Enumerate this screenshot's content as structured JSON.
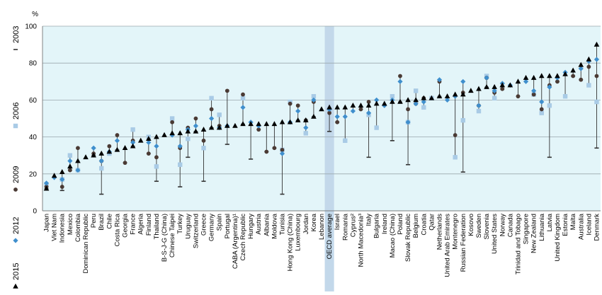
{
  "chart_data": {
    "type": "scatter",
    "y_unit": "%",
    "ylim": [
      0,
      100
    ],
    "yticks": [
      0,
      20,
      40,
      60,
      80,
      100
    ],
    "grid": true,
    "legend_placement": "left-vertical",
    "highlight_category": "OECD average",
    "colors": {
      "plot_bg": "#e3f5f9",
      "grid": "#9aa7ad",
      "range_line": "#333333",
      "s2003": "#333333",
      "s2006": "#a9cbe6",
      "s2009": "#4a3a34",
      "s2012": "#3f8fcd",
      "s2015": "#000000",
      "highlight_band": "#c3d8ea"
    },
    "series": [
      {
        "name": "2015",
        "marker": "triangle"
      },
      {
        "name": "2012",
        "marker": "diamond"
      },
      {
        "name": "2009",
        "marker": "circle"
      },
      {
        "name": "2006",
        "marker": "square"
      },
      {
        "name": "2003",
        "marker": "bar"
      }
    ],
    "categories": [
      "Japan",
      "Viet Nam",
      "Indonesia",
      "Mexico",
      "Colombia",
      "Dominican Republic",
      "Peru",
      "Brazil",
      "Chile",
      "Costa Rica",
      "Georgia",
      "France",
      "Algeria",
      "Finland",
      "Thailand",
      "B-S-J-G (China)",
      "Chinese Taipei",
      "Turkey",
      "Uruguay",
      "Switzerland",
      "Greece",
      "Germany",
      "Spain",
      "Portugal",
      "CABA (Argentina)",
      "Czech Republic",
      "Hungary",
      "Austria",
      "Albania",
      "Moldova",
      "Tunisia",
      "Hong Kong (China)",
      "Luxembourg",
      "Jordan",
      "Korea",
      "Lebanon",
      "OECD average",
      "Israel",
      "Romania",
      "Cyprus",
      "North Macedonia",
      "Italy",
      "Bulgaria",
      "Ireland",
      "Macao (China)",
      "Poland",
      "Slovak Republic",
      "Belgium",
      "Croatia",
      "Qatar",
      "Netherlands",
      "United Arab Emirates",
      "Montenegro",
      "Russian Federation",
      "Kosovo",
      "Sweden",
      "Slovenia",
      "United States",
      "Norway",
      "Canada",
      "Trinidad and Tobago",
      "Singapore",
      "New Zealand",
      "Lithuania",
      "Latvia",
      "United Kingdom",
      "Estonia",
      "Malta",
      "Australia",
      "Iceland",
      "Denmark"
    ],
    "category_labels": [
      "Japan",
      "Viet Nam",
      "Indonesia",
      "Mexico",
      "Colombia",
      "Dominican Republic",
      "Peru",
      "Brazil",
      "Chile",
      "Costa Rica",
      "Georgia",
      "France",
      "Algeria",
      "Finland",
      "Thailand",
      "B-S-J-G (China)",
      "Chinese Taipei",
      "Turkey",
      "Uruguay",
      "Switzerland",
      "Greece",
      "Germany",
      "Spain",
      "Portugal",
      "CABA (Argentina)¹",
      "Czech Republic",
      "Hungary",
      "Austria",
      "Albania",
      "Moldova",
      "Tunisia",
      "Hong Kong (China)",
      "Luxembourg",
      "Jordan",
      "Korea",
      "Lebanon",
      "OECD average",
      "Israel",
      "Romania",
      "Cyprus²",
      "North Macedonia³",
      "Italy",
      "Bulgaria",
      "Ireland",
      "Macao (China)",
      "Poland",
      "Slovak Republic",
      "Belgium",
      "Croatia",
      "Qatar",
      "Netherlands",
      "United Arab Emirates",
      "Montenegro",
      "Russian Federation",
      "Kosovo",
      "Sweden",
      "Slovenia",
      "United States",
      "Norway",
      "Canada",
      "Trinidad and Tobago",
      "Singapore",
      "New Zealand",
      "Lithuania",
      "Latvia",
      "United Kingdom",
      "Estonia",
      "Malta",
      "Australia",
      "Iceland",
      "Denmark"
    ],
    "values": {
      "2015": [
        12,
        19,
        21,
        24,
        27,
        29,
        30,
        31,
        32,
        33,
        34,
        35,
        38,
        39,
        40,
        41,
        42,
        42,
        43,
        43,
        44,
        45,
        45,
        46,
        46,
        47,
        47,
        47,
        47,
        47,
        48,
        48,
        49,
        49,
        51,
        55,
        56,
        56,
        56,
        57,
        57,
        57,
        58,
        58,
        59,
        59,
        60,
        60,
        61,
        61,
        62,
        62,
        63,
        63,
        65,
        66,
        67,
        67,
        68,
        68,
        70,
        72,
        72,
        73,
        73,
        73,
        74,
        76,
        79,
        82,
        90
      ],
      "2012": [
        15,
        18,
        17,
        27,
        22,
        null,
        34,
        27,
        32,
        38,
        null,
        37,
        null,
        37,
        35,
        null,
        41,
        35,
        44,
        46,
        null,
        50,
        45,
        46,
        null,
        56,
        48,
        46,
        null,
        null,
        31,
        48,
        54,
        45,
        60,
        null,
        55,
        51,
        51,
        54,
        null,
        53,
        60,
        57,
        60,
        70,
        48,
        58,
        59,
        null,
        71,
        60,
        62,
        70,
        null,
        57,
        72,
        65,
        69,
        68,
        null,
        70,
        65,
        59,
        67,
        72,
        75,
        null,
        77,
        81,
        82
      ],
      "2009": [
        13,
        null,
        13,
        22,
        34,
        null,
        31,
        27,
        35,
        41,
        26,
        38,
        null,
        31,
        29,
        null,
        48,
        34,
        45,
        50,
        38,
        55,
        46,
        65,
        null,
        63,
        null,
        44,
        32,
        34,
        33,
        58,
        57,
        49,
        59,
        null,
        53,
        48,
        null,
        null,
        55,
        59,
        null,
        null,
        null,
        73,
        55,
        58,
        61,
        null,
        70,
        null,
        41,
        64,
        null,
        57,
        72,
        64,
        66,
        null,
        62,
        null,
        63,
        55,
        68,
        70,
        null,
        73,
        71,
        78,
        73
      ],
      "2006": [
        14,
        null,
        17,
        30,
        22,
        null,
        null,
        23,
        31,
        null,
        null,
        44,
        null,
        40,
        24,
        null,
        50,
        25,
        39,
        null,
        34,
        61,
        52,
        null,
        null,
        61,
        null,
        null,
        null,
        null,
        33,
        59,
        null,
        42,
        62,
        null,
        55,
        null,
        38,
        null,
        null,
        52,
        45,
        null,
        62,
        null,
        48,
        65,
        56,
        61,
        null,
        null,
        29,
        49,
        null,
        54,
        73,
        61,
        null,
        null,
        null,
        null,
        63,
        53,
        57,
        null,
        62,
        null,
        null,
        68,
        59
      ],
      "2003": [
        null,
        null,
        11,
        null,
        null,
        null,
        null,
        9,
        null,
        null,
        null,
        null,
        null,
        null,
        16,
        null,
        null,
        13,
        29,
        null,
        16,
        null,
        null,
        36,
        null,
        null,
        28,
        null,
        null,
        null,
        9,
        null,
        null,
        null,
        null,
        null,
        43,
        null,
        null,
        null,
        null,
        29,
        null,
        null,
        38,
        null,
        25,
        null,
        null,
        null,
        null,
        null,
        null,
        21,
        null,
        null,
        null,
        null,
        null,
        null,
        null,
        null,
        null,
        null,
        29,
        null,
        null,
        null,
        null,
        null,
        34
      ]
    }
  }
}
